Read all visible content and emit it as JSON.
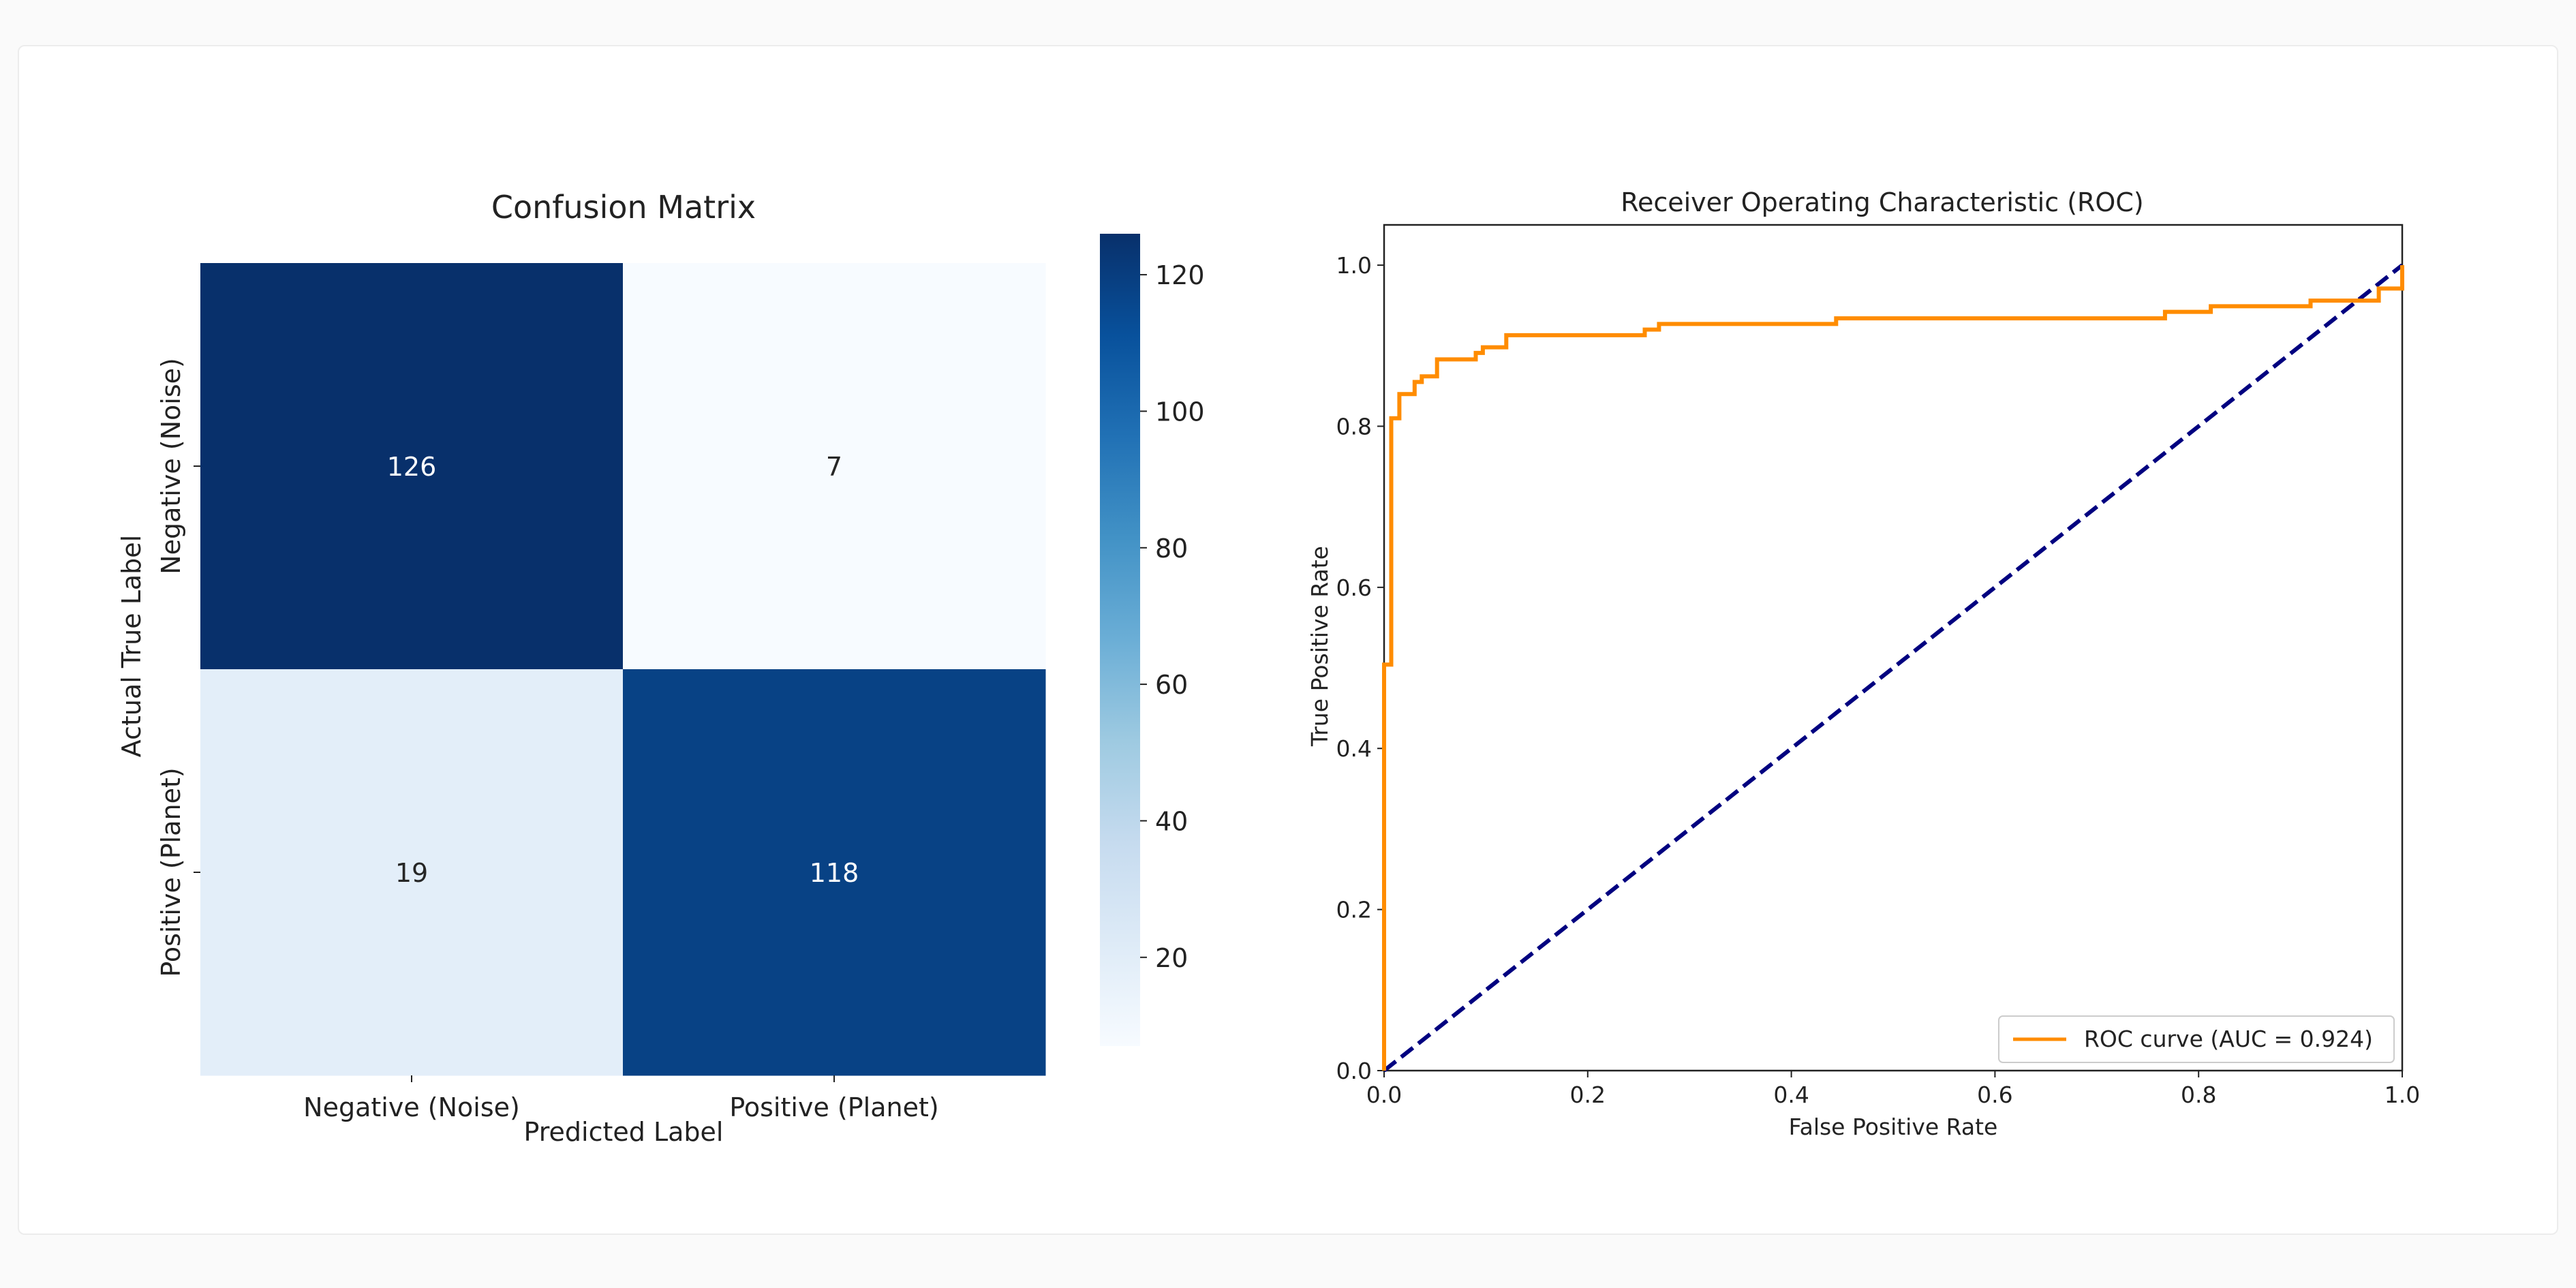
{
  "chart_data": [
    {
      "type": "heatmap",
      "title": "Confusion Matrix",
      "xlabel": "Predicted Label",
      "ylabel": "Actual True Label",
      "x_categories": [
        "Negative (Noise)",
        "Positive (Planet)"
      ],
      "y_categories": [
        "Negative (Noise)",
        "Positive (Planet)"
      ],
      "values": [
        [
          126,
          7
        ],
        [
          19,
          118
        ]
      ],
      "colormap": "Blues",
      "colorbar": {
        "range": [
          7,
          126
        ],
        "ticks": [
          20,
          40,
          60,
          80,
          100,
          120
        ]
      }
    },
    {
      "type": "line",
      "title": "Receiver Operating Characteristic (ROC)",
      "xlabel": "False Positive Rate",
      "ylabel": "True Positive Rate",
      "xlim": [
        0,
        1.0
      ],
      "ylim": [
        0,
        1.05
      ],
      "xticks": [
        "0.0",
        "0.2",
        "0.4",
        "0.6",
        "0.8",
        "1.0"
      ],
      "yticks": [
        "0.0",
        "0.2",
        "0.4",
        "0.6",
        "0.8",
        "1.0"
      ],
      "grid": false,
      "legend": "lower right",
      "series": [
        {
          "name": "ROC curve (AUC = 0.924)",
          "color": "#ff8c00",
          "style": "solid",
          "x": [
            0,
            0.0,
            0.007,
            0.007,
            0.015,
            0.015,
            0.03,
            0.03,
            0.037,
            0.037,
            0.052,
            0.052,
            0.09,
            0.09,
            0.097,
            0.097,
            0.12,
            0.12,
            0.256,
            0.256,
            0.27,
            0.27,
            0.444,
            0.444,
            0.767,
            0.767,
            0.812,
            0.812,
            0.91,
            0.91,
            0.977,
            0.977,
            1.0,
            1.0
          ],
          "y": [
            0,
            0.504,
            0.504,
            0.81,
            0.81,
            0.84,
            0.84,
            0.855,
            0.855,
            0.862,
            0.862,
            0.883,
            0.883,
            0.891,
            0.891,
            0.898,
            0.898,
            0.913,
            0.913,
            0.92,
            0.92,
            0.927,
            0.927,
            0.934,
            0.934,
            0.942,
            0.942,
            0.949,
            0.949,
            0.956,
            0.956,
            0.971,
            0.971,
            1.0
          ]
        },
        {
          "color": "#000080",
          "style": "dashed",
          "x": [
            0,
            1
          ],
          "y": [
            0,
            1
          ]
        }
      ]
    }
  ]
}
